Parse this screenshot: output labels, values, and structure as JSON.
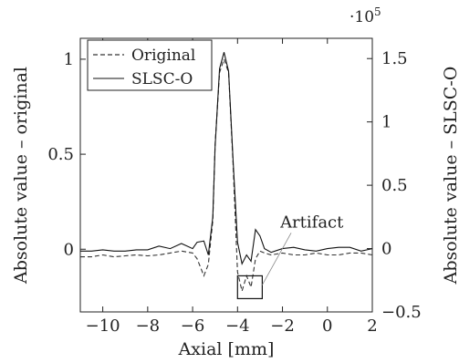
{
  "chart_data": {
    "type": "line",
    "xlabel": "Axial [mm]",
    "ylabel_left": "Absolute value – original",
    "ylabel_right": "Absolute value – SLSC-O",
    "right_axis_multiplier": "·10",
    "right_axis_exponent": "5",
    "xlim": [
      -11,
      2
    ],
    "ylim_left": [
      -0.33,
      1.11
    ],
    "ylim_right": [
      -0.5,
      1.66
    ],
    "xticks": [
      -10,
      -8,
      -6,
      -4,
      -2,
      0,
      2
    ],
    "xtick_labels": [
      "−10",
      "−8",
      "−6",
      "−4",
      "−2",
      "0",
      "2"
    ],
    "yticks_left": [
      0,
      0.5,
      1
    ],
    "ytick_labels_left": [
      "0",
      "0.5",
      "1"
    ],
    "yticks_right": [
      -0.5,
      0,
      0.5,
      1,
      1.5
    ],
    "ytick_labels_right": [
      "−0.5",
      "0",
      "0.5",
      "1",
      "1.5"
    ],
    "grid": false,
    "legend_position": "top-left",
    "series": [
      {
        "name": "Original",
        "axis": "left",
        "style": "dashed",
        "color": "#333333",
        "x": [
          -11,
          -10.5,
          -10,
          -9.5,
          -9,
          -8.5,
          -8,
          -7.5,
          -7,
          -6.5,
          -6,
          -5.8,
          -5.5,
          -5.3,
          -5.1,
          -5.0,
          -4.8,
          -4.6,
          -4.4,
          -4.2,
          -4.0,
          -3.8,
          -3.6,
          -3.4,
          -3.2,
          -3.0,
          -2.8,
          -2.5,
          -2.0,
          -1.5,
          -1.0,
          -0.5,
          0,
          0.5,
          1,
          1.5,
          2
        ],
        "y": [
          -0.04,
          -0.04,
          -0.03,
          -0.04,
          -0.035,
          -0.03,
          -0.035,
          -0.03,
          -0.02,
          -0.01,
          -0.02,
          -0.05,
          -0.14,
          -0.08,
          0.15,
          0.55,
          0.93,
          1.0,
          0.93,
          0.45,
          -0.12,
          -0.22,
          -0.14,
          -0.2,
          -0.05,
          -0.01,
          -0.02,
          -0.03,
          -0.02,
          -0.03,
          -0.03,
          -0.02,
          -0.03,
          -0.03,
          -0.02,
          -0.02,
          -0.03
        ]
      },
      {
        "name": "SLSC-O",
        "axis": "right",
        "style": "solid",
        "color": "#111111",
        "x": [
          -11,
          -10.5,
          -10,
          -9.5,
          -9,
          -8.5,
          -8,
          -7.5,
          -7,
          -6.5,
          -6,
          -5.8,
          -5.5,
          -5.3,
          -5.1,
          -5.0,
          -4.8,
          -4.6,
          -4.4,
          -4.2,
          -4.0,
          -3.8,
          -3.6,
          -3.4,
          -3.2,
          -3.0,
          -2.8,
          -2.5,
          -2.0,
          -1.5,
          -1.0,
          -0.5,
          0,
          0.5,
          1,
          1.5,
          2
        ],
        "y": [
          -0.02,
          -0.02,
          -0.01,
          -0.02,
          -0.02,
          -0.01,
          -0.01,
          0.02,
          0.0,
          0.04,
          0.0,
          0.05,
          0.06,
          -0.05,
          0.25,
          0.8,
          1.42,
          1.55,
          1.4,
          0.7,
          0.05,
          -0.12,
          -0.05,
          -0.1,
          0.15,
          0.1,
          0.0,
          -0.03,
          0.0,
          0.01,
          -0.01,
          -0.02,
          0.0,
          0.01,
          0.01,
          -0.02,
          0.0
        ]
      }
    ],
    "annotation": {
      "text": "Artifact",
      "box_x": [
        -4.0,
        -2.9
      ],
      "box_y_left": [
        -0.26,
        -0.14
      ]
    }
  }
}
